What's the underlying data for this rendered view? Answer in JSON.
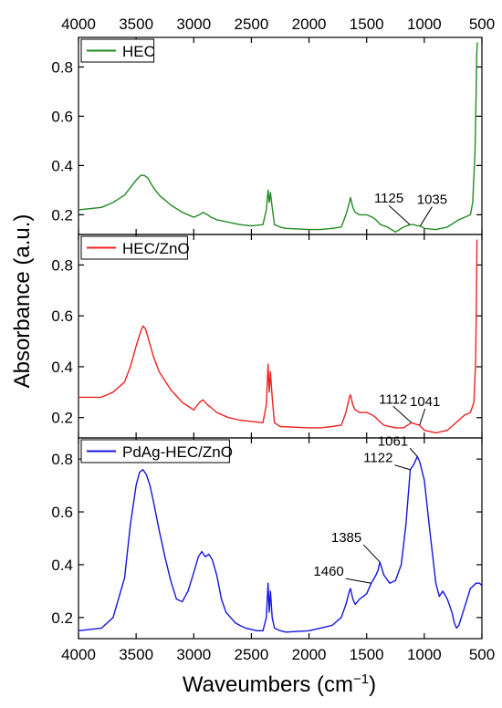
{
  "figure": {
    "y_axis_label": "Absorbance (a.u.)",
    "x_axis_label_main": "Waveumbers (cm",
    "x_axis_label_sup": "−1",
    "x_axis_label_close": ")"
  },
  "chart_data": [
    {
      "type": "line",
      "panel": "top",
      "xlim": [
        4000,
        500
      ],
      "ylim": [
        0.12,
        0.92
      ],
      "x_ticks": [
        4000,
        3500,
        3000,
        2500,
        2000,
        1500,
        1000,
        500
      ],
      "x_tick_labels": [
        "4000",
        "3500",
        "3000",
        "2500",
        "2000",
        "1500",
        "1000",
        "500"
      ],
      "x_tick_labels_position": "top",
      "y_ticks": [
        0.2,
        0.4,
        0.6,
        0.8
      ],
      "y_tick_labels": [
        "0.2",
        "0.4",
        "0.6",
        "0.8"
      ],
      "legend": "top-left",
      "grid": false,
      "series": [
        {
          "name": "HEC",
          "color": "#228B22",
          "x": [
            4000,
            3800,
            3700,
            3600,
            3550,
            3500,
            3460,
            3430,
            3400,
            3350,
            3300,
            3200,
            3100,
            3000,
            2950,
            2920,
            2880,
            2850,
            2800,
            2700,
            2600,
            2500,
            2400,
            2370,
            2355,
            2345,
            2335,
            2320,
            2300,
            2250,
            2200,
            2000,
            1900,
            1800,
            1720,
            1680,
            1650,
            1640,
            1620,
            1600,
            1560,
            1500,
            1450,
            1420,
            1400,
            1380,
            1320,
            1250,
            1180,
            1125,
            1090,
            1060,
            1035,
            1000,
            900,
            800,
            700,
            650,
            600,
            580,
            560,
            550,
            545,
            540
          ],
          "y": [
            0.22,
            0.23,
            0.25,
            0.28,
            0.31,
            0.34,
            0.36,
            0.36,
            0.35,
            0.31,
            0.28,
            0.24,
            0.21,
            0.19,
            0.2,
            0.21,
            0.2,
            0.19,
            0.18,
            0.17,
            0.16,
            0.155,
            0.16,
            0.22,
            0.3,
            0.25,
            0.29,
            0.23,
            0.16,
            0.15,
            0.145,
            0.14,
            0.14,
            0.145,
            0.15,
            0.2,
            0.25,
            0.27,
            0.23,
            0.21,
            0.2,
            0.2,
            0.19,
            0.18,
            0.17,
            0.16,
            0.15,
            0.13,
            0.15,
            0.16,
            0.16,
            0.155,
            0.155,
            0.145,
            0.14,
            0.15,
            0.18,
            0.19,
            0.2,
            0.25,
            0.45,
            0.7,
            0.85,
            0.9
          ]
        }
      ],
      "annotations": [
        {
          "label": "1125",
          "x": 1125,
          "y": 0.16
        },
        {
          "label": "1035",
          "x": 1035,
          "y": 0.155
        }
      ]
    },
    {
      "type": "line",
      "panel": "middle",
      "xlim": [
        4000,
        500
      ],
      "ylim": [
        0.12,
        0.92
      ],
      "y_ticks": [
        0.2,
        0.4,
        0.6,
        0.8
      ],
      "y_tick_labels": [
        "0.2",
        "0.4",
        "0.6",
        "0.8"
      ],
      "legend": "top-left",
      "grid": false,
      "series": [
        {
          "name": "HEC/ZnO",
          "color": "#EE2222",
          "x": [
            4000,
            3800,
            3700,
            3600,
            3550,
            3500,
            3460,
            3440,
            3420,
            3400,
            3350,
            3300,
            3200,
            3100,
            3000,
            2950,
            2920,
            2880,
            2850,
            2800,
            2700,
            2600,
            2500,
            2400,
            2370,
            2355,
            2345,
            2335,
            2320,
            2300,
            2250,
            2000,
            1900,
            1800,
            1720,
            1680,
            1650,
            1640,
            1620,
            1600,
            1560,
            1500,
            1450,
            1420,
            1400,
            1350,
            1250,
            1180,
            1112,
            1080,
            1041,
            1000,
            900,
            800,
            700,
            650,
            600,
            570,
            555,
            548,
            543
          ],
          "y": [
            0.28,
            0.28,
            0.3,
            0.34,
            0.4,
            0.48,
            0.54,
            0.56,
            0.55,
            0.52,
            0.44,
            0.38,
            0.31,
            0.26,
            0.23,
            0.26,
            0.27,
            0.25,
            0.24,
            0.22,
            0.2,
            0.19,
            0.185,
            0.18,
            0.25,
            0.41,
            0.3,
            0.38,
            0.28,
            0.18,
            0.165,
            0.16,
            0.16,
            0.165,
            0.17,
            0.22,
            0.28,
            0.29,
            0.25,
            0.23,
            0.22,
            0.22,
            0.21,
            0.2,
            0.19,
            0.17,
            0.16,
            0.16,
            0.18,
            0.175,
            0.17,
            0.15,
            0.14,
            0.15,
            0.19,
            0.21,
            0.22,
            0.26,
            0.42,
            0.65,
            0.9
          ]
        }
      ],
      "annotations": [
        {
          "label": "1112",
          "x": 1112,
          "y": 0.18
        },
        {
          "label": "1041",
          "x": 1041,
          "y": 0.17
        }
      ]
    },
    {
      "type": "line",
      "panel": "bottom",
      "xlim": [
        4000,
        500
      ],
      "ylim": [
        0.12,
        0.88
      ],
      "x_ticks": [
        4000,
        3500,
        3000,
        2500,
        2000,
        1500,
        1000,
        500
      ],
      "x_tick_labels": [
        "4000",
        "3500",
        "3000",
        "2500",
        "2000",
        "1500",
        "1000",
        "500"
      ],
      "x_tick_labels_position": "bottom",
      "y_ticks": [
        0.2,
        0.4,
        0.6,
        0.8
      ],
      "y_tick_labels": [
        "0.2",
        "0.4",
        "0.6",
        "0.8"
      ],
      "legend": "top-left",
      "grid": false,
      "series": [
        {
          "name": "PdAg-HEC/ZnO",
          "color": "#1515DD",
          "x": [
            4000,
            3800,
            3700,
            3600,
            3550,
            3500,
            3470,
            3440,
            3410,
            3380,
            3350,
            3300,
            3250,
            3200,
            3150,
            3100,
            3050,
            3000,
            2960,
            2930,
            2900,
            2870,
            2840,
            2800,
            2760,
            2720,
            2680,
            2640,
            2600,
            2550,
            2500,
            2450,
            2400,
            2370,
            2355,
            2345,
            2335,
            2320,
            2300,
            2250,
            2200,
            2000,
            1900,
            1800,
            1720,
            1680,
            1650,
            1640,
            1620,
            1600,
            1560,
            1500,
            1460,
            1420,
            1400,
            1385,
            1350,
            1300,
            1250,
            1200,
            1160,
            1122,
            1090,
            1061,
            1040,
            1000,
            950,
            900,
            870,
            840,
            800,
            760,
            740,
            720,
            700,
            650,
            600,
            550,
            520,
            500
          ],
          "y": [
            0.15,
            0.16,
            0.2,
            0.35,
            0.55,
            0.7,
            0.75,
            0.76,
            0.74,
            0.7,
            0.64,
            0.53,
            0.43,
            0.34,
            0.27,
            0.26,
            0.3,
            0.37,
            0.43,
            0.45,
            0.43,
            0.44,
            0.42,
            0.36,
            0.27,
            0.22,
            0.2,
            0.18,
            0.17,
            0.16,
            0.155,
            0.15,
            0.15,
            0.2,
            0.33,
            0.22,
            0.3,
            0.2,
            0.16,
            0.15,
            0.145,
            0.15,
            0.16,
            0.17,
            0.2,
            0.25,
            0.3,
            0.31,
            0.27,
            0.25,
            0.27,
            0.29,
            0.33,
            0.36,
            0.38,
            0.41,
            0.36,
            0.33,
            0.34,
            0.4,
            0.55,
            0.76,
            0.78,
            0.81,
            0.79,
            0.72,
            0.52,
            0.33,
            0.28,
            0.3,
            0.27,
            0.22,
            0.18,
            0.16,
            0.17,
            0.24,
            0.31,
            0.33,
            0.33,
            0.32
          ]
        }
      ],
      "annotations": [
        {
          "label": "1061",
          "x": 1061,
          "y": 0.81
        },
        {
          "label": "1122",
          "x": 1122,
          "y": 0.76
        },
        {
          "label": "1385",
          "x": 1385,
          "y": 0.41
        },
        {
          "label": "1460",
          "x": 1460,
          "y": 0.33
        }
      ]
    }
  ]
}
